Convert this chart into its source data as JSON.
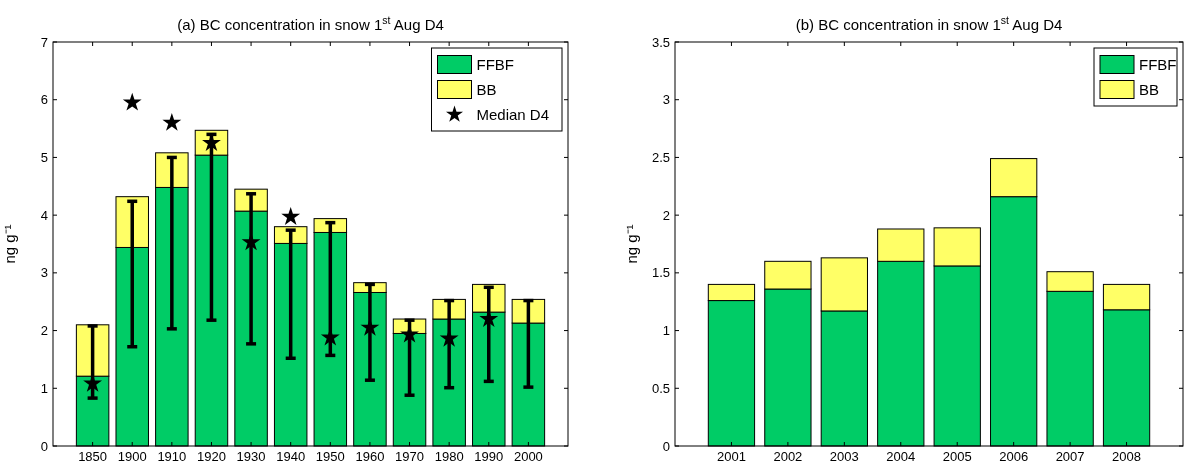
{
  "chart_data": [
    {
      "type": "bar",
      "stacked": true,
      "title": "(a) BC concentration in snow 1$^{st}$ Aug D4",
      "ylabel": "ng g⁻¹",
      "categories": [
        "1850",
        "1900",
        "1910",
        "1920",
        "1930",
        "1940",
        "1950",
        "1960",
        "1970",
        "1980",
        "1990",
        "2000"
      ],
      "ylim": [
        0,
        7
      ],
      "yticks": [
        0,
        1,
        2,
        3,
        4,
        5,
        6,
        7
      ],
      "legend": "top right",
      "series": [
        {
          "name": "FFBF",
          "color": "#00cc66",
          "values": [
            1.21,
            3.44,
            4.48,
            5.04,
            4.07,
            3.51,
            3.7,
            2.66,
            1.95,
            2.2,
            2.32,
            2.13
          ],
          "errors": [
            [
              0.83,
              2.08
            ],
            [
              1.72,
              4.24
            ],
            [
              2.03,
              5.0
            ],
            [
              2.18,
              5.4
            ],
            [
              1.77,
              4.37
            ],
            [
              1.52,
              3.74
            ],
            [
              1.57,
              3.87
            ],
            [
              1.14,
              2.8
            ],
            [
              0.88,
              2.18
            ],
            [
              1.01,
              2.52
            ],
            [
              1.12,
              2.75
            ],
            [
              1.02,
              2.52
            ]
          ]
        },
        {
          "name": "BB",
          "color": "#ffff66",
          "values": [
            0.89,
            0.88,
            0.6,
            0.43,
            0.38,
            0.29,
            0.24,
            0.17,
            0.25,
            0.34,
            0.48,
            0.41
          ]
        },
        {
          "name": "Median D4",
          "type": "scatter",
          "marker": "star",
          "color": "#000000",
          "values": [
            1.08,
            5.95,
            5.6,
            5.25,
            3.53,
            3.97,
            1.88,
            2.05,
            1.93,
            1.86,
            2.2,
            null
          ]
        }
      ]
    },
    {
      "type": "bar",
      "stacked": true,
      "title": "(b) BC concentration in snow 1$^{st}$ Aug D4",
      "ylabel": "ng g⁻¹",
      "categories": [
        "2001",
        "2002",
        "2003",
        "2004",
        "2005",
        "2006",
        "2007",
        "2008"
      ],
      "ylim": [
        0,
        3.5
      ],
      "yticks": [
        0,
        0.5,
        1,
        1.5,
        2,
        2.5,
        3,
        3.5
      ],
      "legend": "top right",
      "series": [
        {
          "name": "FFBF",
          "color": "#00cc66",
          "values": [
            1.26,
            1.36,
            1.17,
            1.6,
            1.56,
            2.16,
            1.34,
            1.18
          ]
        },
        {
          "name": "BB",
          "color": "#ffff66",
          "values": [
            0.14,
            0.24,
            0.46,
            0.28,
            0.33,
            0.33,
            0.17,
            0.22
          ]
        }
      ]
    }
  ]
}
